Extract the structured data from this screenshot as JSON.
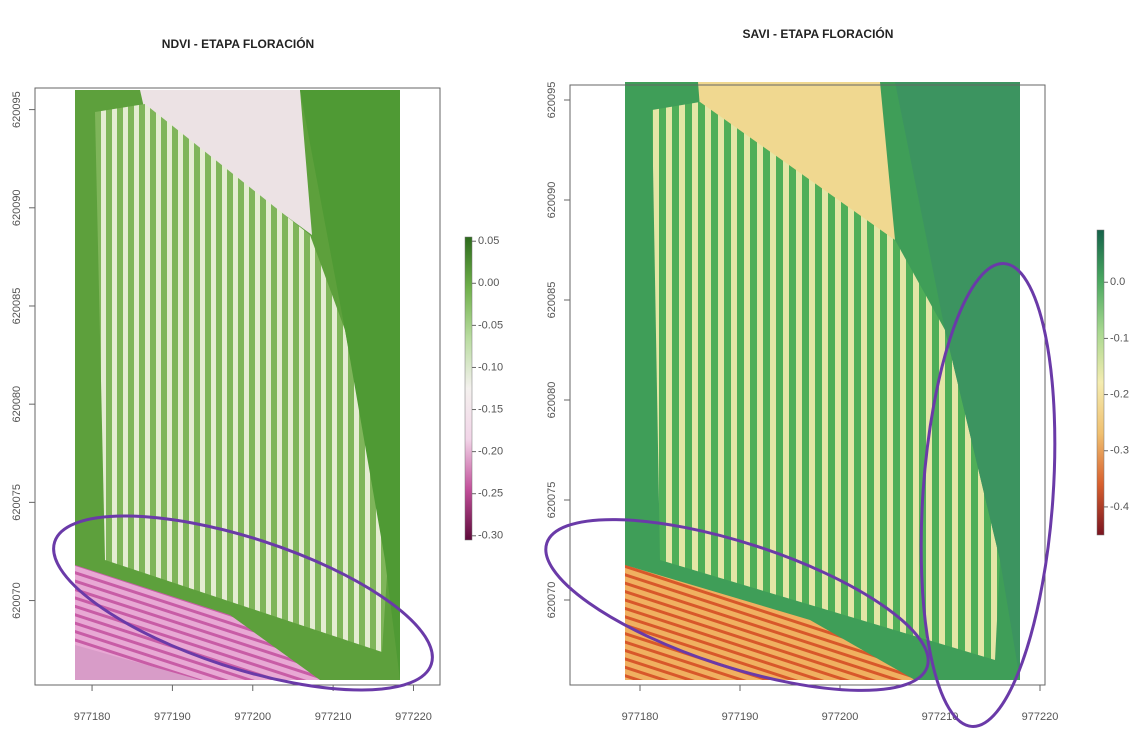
{
  "chart_data": [
    {
      "type": "raster",
      "title": "NDVI - ETAPA FLORACIÓN",
      "xlim": [
        977172.9,
        977223.3
      ],
      "xticks": [
        977180,
        977190,
        977200,
        977210,
        977220
      ],
      "ylim": [
        620065.7,
        620096.1
      ],
      "yticks": [
        620070,
        620075,
        620080,
        620085,
        620090,
        620095
      ],
      "colorbar": {
        "lim": [
          -0.305,
          0.055
        ],
        "ticks": [
          0.05,
          {
            "value": 0,
            "label": "0.00"
          },
          -0.05,
          {
            "value": -0.1,
            "label": "-0.10"
          },
          -0.15,
          {
            "value": -0.2,
            "label": "-0.20"
          },
          -0.25,
          {
            "value": -0.3,
            "label": "-0.30"
          }
        ],
        "colors": [
          "#5e0a3a",
          "#c24f9a",
          "#f2d5e8",
          "#f4f1ee",
          "#b9dca0",
          "#6fb04a",
          "#2c6a1c"
        ]
      }
    },
    {
      "type": "raster",
      "title": "SAVI - ETAPA FLORACIÓN",
      "xlim": [
        977173,
        977220.5
      ],
      "xticks": [
        977180,
        977190,
        977200,
        977210,
        977220
      ],
      "ylim": [
        620065.75,
        620095.75
      ],
      "yticks": [
        620070,
        620075,
        620080,
        620085,
        620090,
        620095
      ],
      "colorbar": {
        "lim": [
          -0.45,
          0.093
        ],
        "ticks": [
          {
            "value": 0,
            "label": "0.0"
          },
          -0.1,
          -0.2,
          -0.3,
          -0.4
        ],
        "colors": [
          "#7a1420",
          "#d8602e",
          "#f0c070",
          "#f4ecb0",
          "#a8d890",
          "#4aa860",
          "#15634a"
        ]
      }
    }
  ]
}
